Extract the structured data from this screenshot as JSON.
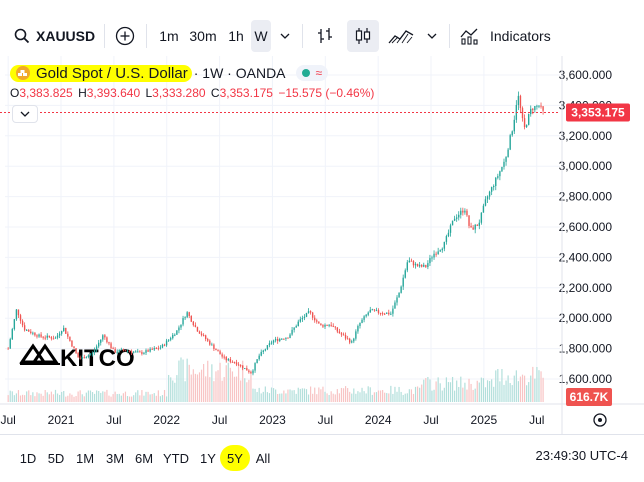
{
  "toolbar": {
    "symbol": "XAUUSD",
    "intervals": [
      "1m",
      "30m",
      "1h",
      "W"
    ],
    "active_interval": "W",
    "indicators_label": "Indicators",
    "icons": [
      "search-icon",
      "add-symbol-icon",
      "chevron-down-icon",
      "bar-style-icon",
      "candle-style-icon",
      "area-style-icon",
      "indicators-icon"
    ]
  },
  "legend": {
    "title": "Gold Spot / U.S. Dollar",
    "meta": "· 1W · OANDA",
    "approx_symbol": "≈",
    "ohlc": [
      {
        "k": "O",
        "v": "3,383.825"
      },
      {
        "k": "H",
        "v": "3,393.640"
      },
      {
        "k": "L",
        "v": "3,333.280"
      },
      {
        "k": "C",
        "v": "3,353.175"
      }
    ],
    "change": "−15.575 (−0.46%)"
  },
  "watermark": "KITCO",
  "colors": {
    "up": "#26a69a",
    "down": "#ef5350",
    "vol_up": "#b2dfdb",
    "vol_down": "#f8c4c4",
    "price_line": "#f23645",
    "highlight": "#ffff00"
  },
  "chart_data": {
    "type": "candlestick",
    "title": "Gold Spot / U.S. Dollar · 1W · OANDA",
    "y_axis": {
      "ticks": [
        "3,600.000",
        "3,400.000",
        "3,200.000",
        "3,000.000",
        "2,800.000",
        "2,600.000",
        "2,400.000",
        "2,200.000",
        "2,000.000",
        "1,800.000",
        "1,600.000"
      ],
      "tick_values": [
        3600,
        3400,
        3200,
        3000,
        2800,
        2600,
        2400,
        2200,
        2000,
        1800,
        1600
      ],
      "range": [
        1540,
        3640
      ]
    },
    "x_axis": {
      "ticks": [
        {
          "label": "Jul",
          "t": 2020.5
        },
        {
          "label": "2021",
          "t": 2021.0
        },
        {
          "label": "Jul",
          "t": 2021.5
        },
        {
          "label": "2022",
          "t": 2022.0
        },
        {
          "label": "Jul",
          "t": 2022.5
        },
        {
          "label": "2023",
          "t": 2023.0
        },
        {
          "label": "Jul",
          "t": 2023.5
        },
        {
          "label": "2024",
          "t": 2024.0
        },
        {
          "label": "Jul",
          "t": 2024.5
        },
        {
          "label": "2025",
          "t": 2025.0
        },
        {
          "label": "Jul",
          "t": 2025.5
        }
      ],
      "range": [
        2020.47,
        2025.72
      ]
    },
    "last_price": 3353.175,
    "last_price_label": "3,353.175",
    "volume_label": "616.7K",
    "price_path": [
      [
        2020.5,
        1800
      ],
      [
        2020.58,
        2060
      ],
      [
        2020.65,
        1930
      ],
      [
        2020.8,
        1880
      ],
      [
        2020.95,
        1870
      ],
      [
        2021.02,
        1940
      ],
      [
        2021.17,
        1730
      ],
      [
        2021.3,
        1770
      ],
      [
        2021.4,
        1890
      ],
      [
        2021.5,
        1780
      ],
      [
        2021.6,
        1790
      ],
      [
        2021.75,
        1770
      ],
      [
        2021.95,
        1810
      ],
      [
        2022.1,
        1920
      ],
      [
        2022.19,
        2040
      ],
      [
        2022.28,
        1930
      ],
      [
        2022.4,
        1840
      ],
      [
        2022.55,
        1730
      ],
      [
        2022.65,
        1710
      ],
      [
        2022.8,
        1640
      ],
      [
        2022.87,
        1750
      ],
      [
        2023.0,
        1850
      ],
      [
        2023.15,
        1880
      ],
      [
        2023.25,
        1980
      ],
      [
        2023.35,
        2040
      ],
      [
        2023.45,
        1950
      ],
      [
        2023.55,
        1960
      ],
      [
        2023.62,
        1910
      ],
      [
        2023.75,
        1840
      ],
      [
        2023.82,
        1960
      ],
      [
        2023.92,
        2050
      ],
      [
        2024.0,
        2040
      ],
      [
        2024.12,
        2030
      ],
      [
        2024.2,
        2170
      ],
      [
        2024.28,
        2380
      ],
      [
        2024.38,
        2340
      ],
      [
        2024.45,
        2340
      ],
      [
        2024.52,
        2420
      ],
      [
        2024.62,
        2480
      ],
      [
        2024.72,
        2660
      ],
      [
        2024.82,
        2720
      ],
      [
        2024.87,
        2580
      ],
      [
        2024.95,
        2620
      ],
      [
        2025.02,
        2780
      ],
      [
        2025.12,
        2920
      ],
      [
        2025.2,
        3040
      ],
      [
        2025.28,
        3280
      ],
      [
        2025.32,
        3480
      ],
      [
        2025.38,
        3240
      ],
      [
        2025.45,
        3380
      ],
      [
        2025.52,
        3400
      ],
      [
        2025.56,
        3353
      ]
    ],
    "candle_count": 261,
    "volume_profile": [
      {
        "from": 2020.47,
        "to": 2022.0,
        "level": 0.15
      },
      {
        "from": 2022.0,
        "to": 2022.8,
        "level": 0.55
      },
      {
        "from": 2022.8,
        "to": 2024.4,
        "level": 0.2
      },
      {
        "from": 2024.4,
        "to": 2025.1,
        "level": 0.32
      },
      {
        "from": 2025.1,
        "to": 2025.6,
        "level": 0.45
      }
    ]
  },
  "ranges": [
    "1D",
    "5D",
    "1M",
    "3M",
    "6M",
    "YTD",
    "1Y",
    "5Y",
    "All"
  ],
  "active_range": "5Y",
  "clock": "23:49:30 UTC-4"
}
